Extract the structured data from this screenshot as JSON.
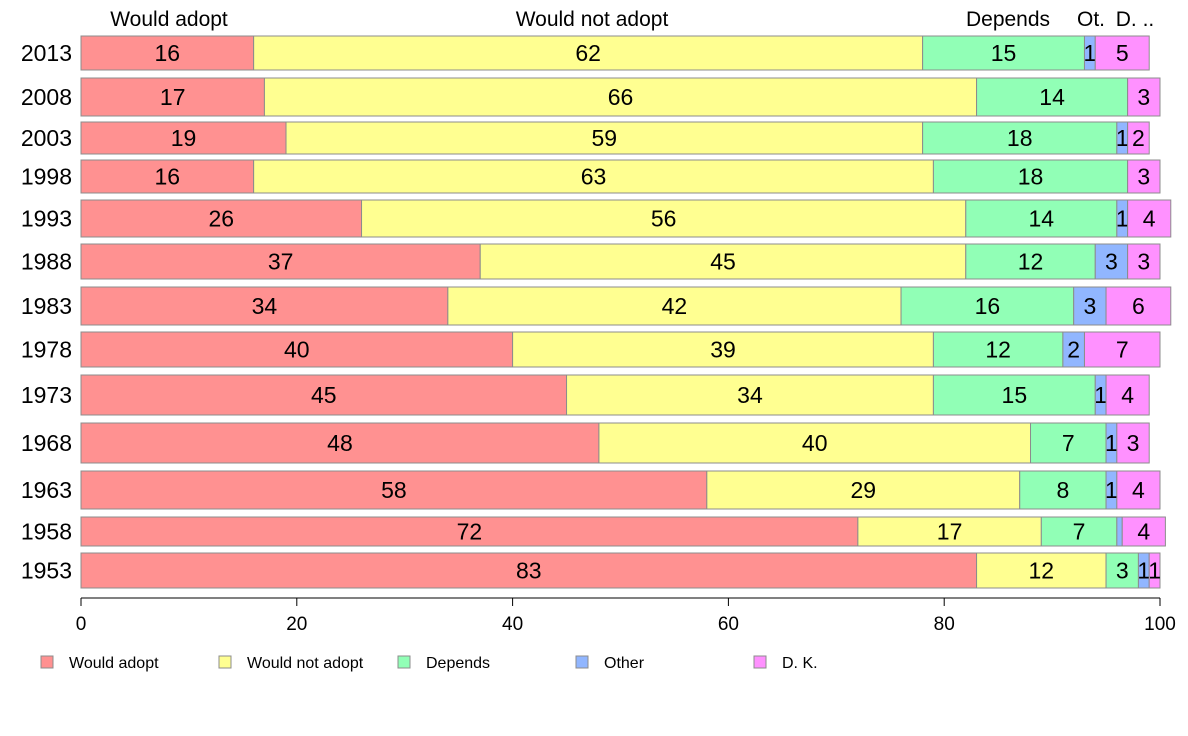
{
  "chart_data": {
    "type": "bar",
    "orientation": "horizontal",
    "stacked": true,
    "categories": [
      "2013",
      "2008",
      "2003",
      "1998",
      "1993",
      "1988",
      "1983",
      "1978",
      "1973",
      "1968",
      "1963",
      "1958",
      "1953"
    ],
    "series": [
      {
        "name": "Would adopt",
        "color": "#ff9191",
        "values": [
          16,
          17,
          19,
          16,
          26,
          37,
          34,
          40,
          45,
          48,
          58,
          72,
          83
        ]
      },
      {
        "name": "Would not adopt",
        "color": "#ffff91",
        "values": [
          62,
          66,
          59,
          63,
          56,
          45,
          42,
          39,
          34,
          40,
          29,
          17,
          12
        ]
      },
      {
        "name": "Depends",
        "color": "#91ffb6",
        "values": [
          15,
          14,
          18,
          18,
          14,
          12,
          16,
          12,
          15,
          7,
          8,
          7,
          3
        ]
      },
      {
        "name": "Other",
        "color": "#91b6ff",
        "values": [
          1,
          0,
          1,
          0,
          1,
          3,
          3,
          2,
          1,
          1,
          1,
          0.5,
          1
        ]
      },
      {
        "name": "D. K.",
        "color": "#ff91ff",
        "values": [
          5,
          3,
          2,
          3,
          4,
          3,
          6,
          7,
          4,
          3,
          4,
          4,
          1
        ]
      }
    ],
    "data_labels": [
      [
        "16",
        "62",
        "15",
        "1",
        "5"
      ],
      [
        "17",
        "66",
        "14",
        "",
        "3"
      ],
      [
        "19",
        "59",
        "18",
        "1",
        "2"
      ],
      [
        "16",
        "63",
        "18",
        "",
        "3"
      ],
      [
        "26",
        "56",
        "14",
        "1",
        "4"
      ],
      [
        "37",
        "45",
        "12",
        "3",
        "3"
      ],
      [
        "34",
        "42",
        "16",
        "3",
        "6"
      ],
      [
        "40",
        "39",
        "12",
        "2",
        "7"
      ],
      [
        "45",
        "34",
        "15",
        "1",
        "4"
      ],
      [
        "48",
        "40",
        "7",
        "1",
        "3"
      ],
      [
        "58",
        "29",
        "8",
        "1",
        "4"
      ],
      [
        "72",
        "17",
        "7",
        "",
        "4"
      ],
      [
        "83",
        "12",
        "3",
        "1",
        "1"
      ]
    ],
    "top_labels": [
      "Would adopt",
      "Would not adopt",
      "Depends",
      "Ot.",
      "D. .."
    ],
    "x_ticks": [
      0,
      20,
      40,
      60,
      80,
      100
    ],
    "xlim": [
      0,
      100
    ],
    "legend": [
      "Would adopt",
      "Would not adopt",
      "Depends",
      "Other",
      "D. K."
    ],
    "legend_position": "bottom",
    "grid": false
  }
}
